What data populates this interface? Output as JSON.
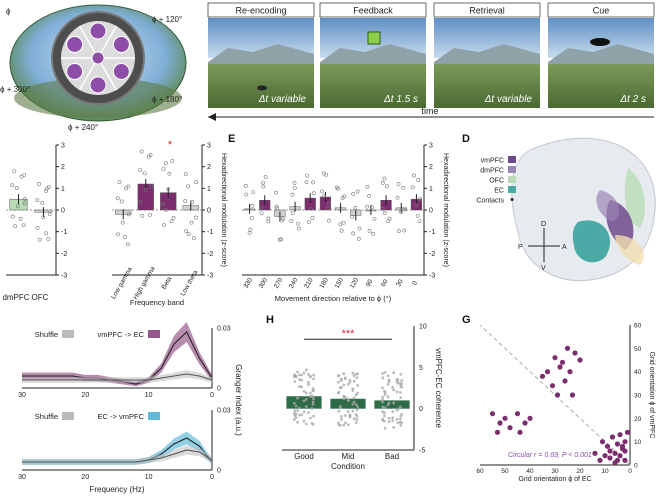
{
  "panel_labels": {
    "D": "D",
    "E": "E",
    "G": "G",
    "H": "H"
  },
  "top": {
    "phases": [
      "Re-encoding",
      "Feedback",
      "Retrieval",
      "Cue"
    ],
    "durations": [
      "Δt variable",
      "Δt 1.5 s",
      "Δt variable",
      "Δt 2 s"
    ],
    "time_label": "time",
    "arena_angles": [
      "ϕ",
      "ϕ + 120°",
      "ϕ + 300°",
      "ϕ + 180°",
      "ϕ + 240°"
    ]
  },
  "brain": {
    "legend": [
      "vmPFC",
      "dmPFC",
      "OFC",
      "EC",
      "Contacts"
    ],
    "axes": {
      "D": "D",
      "V": "V",
      "A": "A",
      "P": "P"
    }
  },
  "chart_data": [
    {
      "id": "E",
      "type": "bar",
      "xlabel": "Movement direction relative to ϕ (°)",
      "ylabel": "Hexadirectional modulation (z-score)",
      "categories": [
        "0",
        "30",
        "60",
        "90",
        "120",
        "150",
        "180",
        "210",
        "240",
        "270",
        "300",
        "330"
      ],
      "values": [
        0.5,
        0.1,
        0.45,
        0.0,
        -0.25,
        0.1,
        0.6,
        0.55,
        0.15,
        -0.3,
        0.45,
        0.05
      ],
      "ylim": [
        -3,
        3
      ],
      "yticks": [
        "-3",
        "-2",
        "-1",
        "0",
        "1",
        "2",
        "3"
      ]
    },
    {
      "id": "freq",
      "type": "bar",
      "xlabel": "Frequency band",
      "ylabel": "Hexadirectional modulation (z-score)",
      "categories": [
        "Low gamma",
        "High gamma",
        "Beta",
        "Low theta"
      ],
      "values": [
        -0.2,
        1.2,
        0.8,
        0.2
      ],
      "significance": "*",
      "ylim": [
        -3,
        3
      ],
      "yticks": [
        "-3",
        "-2",
        "-1",
        "0",
        "1",
        "2",
        "3"
      ]
    },
    {
      "id": "region",
      "type": "bar",
      "categories": [
        "OFC",
        "dmPFC"
      ],
      "values": [
        0.5,
        -0.1
      ],
      "ylim": [
        -3,
        3
      ],
      "yticks": [
        "-3",
        "-2",
        "-1",
        "0",
        "1",
        "2",
        "3"
      ]
    },
    {
      "id": "G",
      "type": "scatter",
      "xlabel": "Grid orientation ϕ of EC",
      "ylabel": "Grid orientation ϕ of vmPFC",
      "xticks": [
        "0",
        "10",
        "20",
        "30",
        "40",
        "50",
        "60"
      ],
      "yticks": [
        "0",
        "10",
        "20",
        "30",
        "40",
        "50",
        "60"
      ],
      "xlim": [
        0,
        60
      ],
      "ylim": [
        0,
        60
      ],
      "annotation": "Circular r = 0.69, P < 0.001",
      "points": [
        [
          2,
          2
        ],
        [
          4,
          4
        ],
        [
          6,
          5
        ],
        [
          3,
          7
        ],
        [
          8,
          3
        ],
        [
          5,
          9
        ],
        [
          10,
          4
        ],
        [
          2,
          10
        ],
        [
          7,
          12
        ],
        [
          1,
          14
        ],
        [
          3,
          8
        ],
        [
          9,
          8
        ],
        [
          12,
          2
        ],
        [
          14,
          5
        ],
        [
          6,
          1
        ],
        [
          4,
          13
        ],
        [
          11,
          10
        ],
        [
          2,
          6
        ],
        [
          8,
          6
        ],
        [
          5,
          2
        ],
        [
          20,
          45
        ],
        [
          22,
          48
        ],
        [
          25,
          50
        ],
        [
          28,
          42
        ],
        [
          24,
          40
        ],
        [
          30,
          46
        ],
        [
          27,
          44
        ],
        [
          33,
          40
        ],
        [
          26,
          36
        ],
        [
          31,
          34
        ],
        [
          35,
          38
        ],
        [
          29,
          30
        ],
        [
          23,
          30
        ],
        [
          40,
          20
        ],
        [
          42,
          18
        ],
        [
          45,
          22
        ],
        [
          50,
          20
        ],
        [
          52,
          18
        ],
        [
          55,
          22
        ],
        [
          48,
          16
        ],
        [
          44,
          14
        ],
        [
          53,
          14
        ]
      ]
    },
    {
      "id": "H",
      "type": "bar",
      "xlabel": "Condition",
      "ylabel": "vmPFC-EC coherence",
      "categories": [
        "Good",
        "Mid",
        "Bad"
      ],
      "values": [
        1.5,
        1.2,
        1.0
      ],
      "significance": "***",
      "ylim": [
        -5,
        10
      ],
      "yticks": [
        "-5",
        "0",
        "5",
        "10"
      ]
    },
    {
      "id": "granger",
      "type": "line",
      "xlabel": "Frequency (Hz)",
      "ylabel": "Granger index (a.u.)",
      "xlim": [
        0,
        30
      ],
      "xticks": [
        "0",
        "10",
        "20",
        "30"
      ],
      "yticks": [
        "0",
        "0.03"
      ],
      "panels": [
        {
          "legend": [
            "vmPFC -> EC",
            "Shuffle"
          ],
          "x": [
            0,
            2,
            4,
            6,
            8,
            10,
            12,
            14,
            16,
            18,
            20,
            22,
            24,
            26,
            28,
            30
          ],
          "series": [
            {
              "name": "vmPFC -> EC",
              "values": [
                0.005,
                0.015,
                0.028,
                0.022,
                0.01,
                0.004,
                0.002,
                0.003,
                0.004,
                0.005,
                0.005,
                0.006,
                0.006,
                0.006,
                0.006,
                0.006
              ]
            },
            {
              "name": "Shuffle",
              "values": [
                0.004,
                0.006,
                0.007,
                0.006,
                0.005,
                0.004,
                0.004,
                0.004,
                0.004,
                0.004,
                0.004,
                0.004,
                0.004,
                0.004,
                0.004,
                0.004
              ]
            }
          ]
        },
        {
          "legend": [
            "EC -> vmPFC",
            "Shuffle"
          ],
          "x": [
            0,
            2,
            4,
            6,
            8,
            10,
            12,
            14,
            16,
            18,
            20,
            22,
            24,
            26,
            28,
            30
          ],
          "series": [
            {
              "name": "EC -> vmPFC",
              "values": [
                0.004,
                0.012,
                0.016,
                0.013,
                0.008,
                0.005,
                0.004,
                0.004,
                0.004,
                0.004,
                0.004,
                0.004,
                0.004,
                0.004,
                0.004,
                0.004
              ]
            },
            {
              "name": "Shuffle",
              "values": [
                0.005,
                0.009,
                0.01,
                0.008,
                0.006,
                0.005,
                0.004,
                0.004,
                0.004,
                0.004,
                0.004,
                0.004,
                0.004,
                0.004,
                0.004,
                0.004
              ]
            }
          ]
        }
      ]
    }
  ],
  "colors": {
    "purple": "#7b2d6e",
    "ec_blue": "#39a9cf",
    "coherence_green": "#2e6b47",
    "ofc_green": "#b9dcb7",
    "sig_red": "#d7263d"
  }
}
